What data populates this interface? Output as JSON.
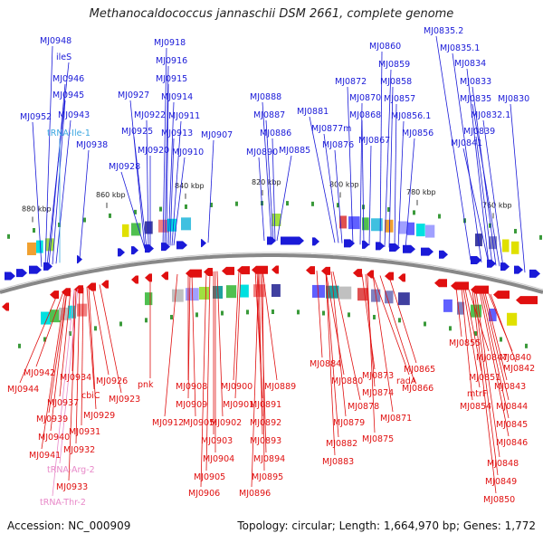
{
  "title": "Methanocaldococcus jannaschii DSM 2661, complete genome",
  "footer": {
    "accession": "Accession: NC_000909",
    "topology": "Topology: circular; Length: 1,664,970 bp; Genes: 1,772"
  },
  "colors": {
    "forward": "#1a1ad8",
    "reverse": "#e01010",
    "trna_ile": "#3aa6e0",
    "trna_reverse": "#e888c8",
    "backbone": "#888888"
  },
  "scale_ticks": [
    "880 kbp",
    "860 kbp",
    "840 kbp",
    "820 kbp",
    "800 kbp",
    "780 kbp",
    "760 kbp"
  ],
  "top_labels": [
    {
      "text": "MJ0948",
      "kind": "gene"
    },
    {
      "text": "ileS",
      "kind": "gene"
    },
    {
      "text": "MJ0946",
      "kind": "gene"
    },
    {
      "text": "MJ0945",
      "kind": "gene"
    },
    {
      "text": "MJ0943",
      "kind": "gene"
    },
    {
      "text": "MJ0952",
      "kind": "gene"
    },
    {
      "text": "tRNA-Ile-1",
      "kind": "trna"
    },
    {
      "text": "MJ0938",
      "kind": "gene"
    },
    {
      "text": "MJ0918",
      "kind": "gene"
    },
    {
      "text": "MJ0916",
      "kind": "gene"
    },
    {
      "text": "MJ0915",
      "kind": "gene"
    },
    {
      "text": "MJ0927",
      "kind": "gene"
    },
    {
      "text": "MJ0914",
      "kind": "gene"
    },
    {
      "text": "MJ0922",
      "kind": "gene"
    },
    {
      "text": "MJ0911",
      "kind": "gene"
    },
    {
      "text": "MJ0925",
      "kind": "gene"
    },
    {
      "text": "MJ0913",
      "kind": "gene"
    },
    {
      "text": "MJ0907",
      "kind": "gene"
    },
    {
      "text": "MJ0920",
      "kind": "gene"
    },
    {
      "text": "MJ0910",
      "kind": "gene"
    },
    {
      "text": "MJ0928",
      "kind": "gene"
    },
    {
      "text": "MJ0888",
      "kind": "gene"
    },
    {
      "text": "MJ0887",
      "kind": "gene"
    },
    {
      "text": "MJ0886",
      "kind": "gene"
    },
    {
      "text": "MJ0890",
      "kind": "gene"
    },
    {
      "text": "MJ0885",
      "kind": "gene"
    },
    {
      "text": "MJ0881",
      "kind": "gene"
    },
    {
      "text": "MJ0877m",
      "kind": "gene"
    },
    {
      "text": "MJ0876",
      "kind": "gene"
    },
    {
      "text": "MJ0872",
      "kind": "gene"
    },
    {
      "text": "MJ0870",
      "kind": "gene"
    },
    {
      "text": "MJ0868",
      "kind": "gene"
    },
    {
      "text": "MJ0867",
      "kind": "gene"
    },
    {
      "text": "MJ0860",
      "kind": "gene"
    },
    {
      "text": "MJ0859",
      "kind": "gene"
    },
    {
      "text": "MJ0858",
      "kind": "gene"
    },
    {
      "text": "MJ0857",
      "kind": "gene"
    },
    {
      "text": "MJ0856.1",
      "kind": "gene"
    },
    {
      "text": "MJ0856",
      "kind": "gene"
    },
    {
      "text": "MJ0835.2",
      "kind": "gene"
    },
    {
      "text": "MJ0835.1",
      "kind": "gene"
    },
    {
      "text": "MJ0834",
      "kind": "gene"
    },
    {
      "text": "MJ0833",
      "kind": "gene"
    },
    {
      "text": "MJ0835",
      "kind": "gene"
    },
    {
      "text": "MJ0830",
      "kind": "gene"
    },
    {
      "text": "MJ0832.1",
      "kind": "gene"
    },
    {
      "text": "MJ0839",
      "kind": "gene"
    },
    {
      "text": "MJ0841",
      "kind": "gene"
    }
  ],
  "bottom_labels": [
    {
      "text": "MJ0942",
      "kind": "gene"
    },
    {
      "text": "MJ0944",
      "kind": "gene"
    },
    {
      "text": "MJ0934",
      "kind": "gene"
    },
    {
      "text": "MJ0926",
      "kind": "gene"
    },
    {
      "text": "MJ0937",
      "kind": "gene"
    },
    {
      "text": "cbiC",
      "kind": "gene"
    },
    {
      "text": "MJ0923",
      "kind": "gene"
    },
    {
      "text": "pnk",
      "kind": "gene"
    },
    {
      "text": "MJ0939",
      "kind": "gene"
    },
    {
      "text": "MJ0929",
      "kind": "gene"
    },
    {
      "text": "MJ0931",
      "kind": "gene"
    },
    {
      "text": "MJ0940",
      "kind": "gene"
    },
    {
      "text": "MJ0941",
      "kind": "gene"
    },
    {
      "text": "MJ0932",
      "kind": "gene"
    },
    {
      "text": "tRNA-Arg-2",
      "kind": "trna"
    },
    {
      "text": "MJ0933",
      "kind": "gene"
    },
    {
      "text": "tRNA-Thr-2",
      "kind": "trna"
    },
    {
      "text": "MJ0908",
      "kind": "gene"
    },
    {
      "text": "MJ0909",
      "kind": "gene"
    },
    {
      "text": "MJ0912",
      "kind": "gene"
    },
    {
      "text": "MJ0905",
      "kind": "gene"
    },
    {
      "text": "MJ0902",
      "kind": "gene"
    },
    {
      "text": "MJ0903",
      "kind": "gene"
    },
    {
      "text": "MJ0904",
      "kind": "gene"
    },
    {
      "text": "MJ0905",
      "kind": "gene"
    },
    {
      "text": "MJ0906",
      "kind": "gene"
    },
    {
      "text": "MJ0900",
      "kind": "gene"
    },
    {
      "text": "MJ0901",
      "kind": "gene"
    },
    {
      "text": "MJ0889",
      "kind": "gene"
    },
    {
      "text": "MJ0891",
      "kind": "gene"
    },
    {
      "text": "MJ0892",
      "kind": "gene"
    },
    {
      "text": "MJ0893",
      "kind": "gene"
    },
    {
      "text": "MJ0894",
      "kind": "gene"
    },
    {
      "text": "MJ0895",
      "kind": "gene"
    },
    {
      "text": "MJ0896",
      "kind": "gene"
    },
    {
      "text": "MJ0884",
      "kind": "gene"
    },
    {
      "text": "MJ0880",
      "kind": "gene"
    },
    {
      "text": "MJ0878",
      "kind": "gene"
    },
    {
      "text": "MJ0879",
      "kind": "gene"
    },
    {
      "text": "MJ0882",
      "kind": "gene"
    },
    {
      "text": "MJ0883",
      "kind": "gene"
    },
    {
      "text": "MJ0873",
      "kind": "gene"
    },
    {
      "text": "MJ0874",
      "kind": "gene"
    },
    {
      "text": "MJ0875",
      "kind": "gene"
    },
    {
      "text": "MJ0871",
      "kind": "gene"
    },
    {
      "text": "radA",
      "kind": "gene"
    },
    {
      "text": "MJ0866",
      "kind": "gene"
    },
    {
      "text": "MJ0865",
      "kind": "gene"
    },
    {
      "text": "MJ0855",
      "kind": "gene"
    },
    {
      "text": "MJ0847",
      "kind": "gene"
    },
    {
      "text": "MJ0840",
      "kind": "gene"
    },
    {
      "text": "MJ0851",
      "kind": "gene"
    },
    {
      "text": "MJ0842",
      "kind": "gene"
    },
    {
      "text": "mtrF",
      "kind": "gene"
    },
    {
      "text": "MJ0843",
      "kind": "gene"
    },
    {
      "text": "MJ0854",
      "kind": "gene"
    },
    {
      "text": "MJ0844",
      "kind": "gene"
    },
    {
      "text": "MJ0845",
      "kind": "gene"
    },
    {
      "text": "MJ0846",
      "kind": "gene"
    },
    {
      "text": "MJ0848",
      "kind": "gene"
    },
    {
      "text": "MJ0849",
      "kind": "gene"
    },
    {
      "text": "MJ0850",
      "kind": "gene"
    }
  ]
}
